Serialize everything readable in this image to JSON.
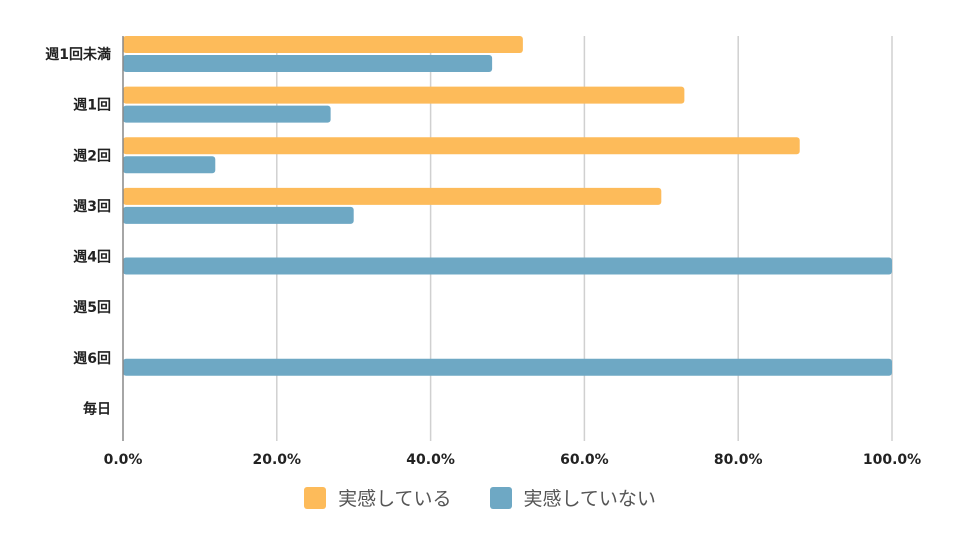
{
  "chart_data": {
    "type": "bar",
    "orientation": "horizontal",
    "categories": [
      "週1回未満",
      "週1回",
      "週2回",
      "週3回",
      "週4回",
      "週5回",
      "週6回",
      "毎日"
    ],
    "series": [
      {
        "name": "実感している",
        "color": "#FDBB5A",
        "values": [
          52,
          73,
          88,
          70,
          0,
          0,
          0,
          0
        ]
      },
      {
        "name": "実感していない",
        "color": "#6EA8C4",
        "values": [
          48,
          27,
          12,
          30,
          100,
          0,
          100,
          0
        ]
      }
    ],
    "xlim": [
      0,
      100
    ],
    "xticks": [
      "0.0%",
      "20.0%",
      "40.0%",
      "60.0%",
      "80.0%",
      "100.0%"
    ],
    "grid": true,
    "legend_position": "bottom",
    "title": "",
    "xlabel": "",
    "ylabel": ""
  }
}
